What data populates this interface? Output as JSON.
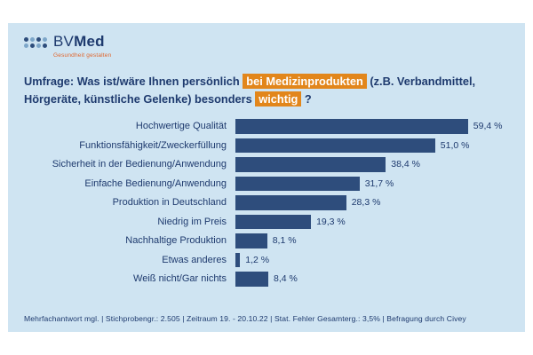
{
  "logo": {
    "name_regular": "BV",
    "name_bold": "Med",
    "tagline": "Gesundheit gestalten"
  },
  "title": {
    "part1": "Umfrage: Was ist/wäre Ihnen persönlich ",
    "highlight1": "bei Medizinprodukten",
    "part2": " (z.B. Verbandmittel, Hörgeräte, künstliche Gelenke) besonders ",
    "highlight2": "wichtig",
    "part3": " ?"
  },
  "chart_data": {
    "type": "bar",
    "orientation": "horizontal",
    "title": "Umfrage: Was ist/wäre Ihnen persönlich bei Medizinprodukten (z.B. Verbandmittel, Hörgeräte, künstliche Gelenke) besonders wichtig?",
    "categories": [
      "Hochwertige Qualität",
      "Funktionsfähigkeit/Zweckerfüllung",
      "Sicherheit in der Bedienung/Anwendung",
      "Einfache Bedienung/Anwendung",
      "Produktion in Deutschland",
      "Niedrig im Preis",
      "Nachhaltige Produktion",
      "Etwas anderes",
      "Weiß nicht/Gar nichts"
    ],
    "values": [
      59.4,
      51.0,
      38.4,
      31.7,
      28.3,
      19.3,
      8.1,
      1.2,
      8.4
    ],
    "value_labels": [
      "59,4 %",
      "51,0 %",
      "38,4 %",
      "31,7 %",
      "28,3 %",
      "19,3 %",
      "8,1 %",
      "1,2 %",
      "8,4 %"
    ],
    "xlabel": "",
    "ylabel": "",
    "xlim": [
      0,
      62
    ],
    "grid": false,
    "legend": "none",
    "bar_color": "#2e4d7c"
  },
  "footer": {
    "text": "Mehrfachantwort mgl. | Stichprobengr.: 2.505 | Zeitraum 19. - 20.10.22 | Stat. Fehler Gesamterg.: 3,5% | Befragung durch Civey"
  },
  "colors": {
    "panel_background": "#cfe4f2",
    "bar": "#2e4d7c",
    "text": "#1e3a6e",
    "highlight": "#e2861b",
    "tagline": "#e0662e"
  }
}
